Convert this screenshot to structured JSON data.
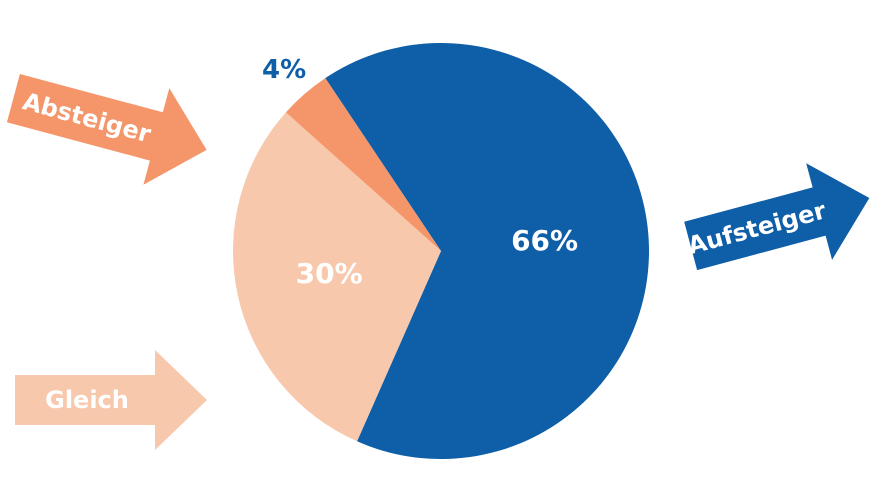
{
  "chart_data": {
    "type": "pie",
    "categories": [
      "Aufsteiger",
      "Gleich",
      "Absteiger"
    ],
    "values": [
      66,
      30,
      4
    ],
    "value_labels": [
      "66%",
      "30%",
      "4%"
    ],
    "colors": [
      "#0f5ea8",
      "#f8c8ad",
      "#f4956a"
    ]
  }
}
